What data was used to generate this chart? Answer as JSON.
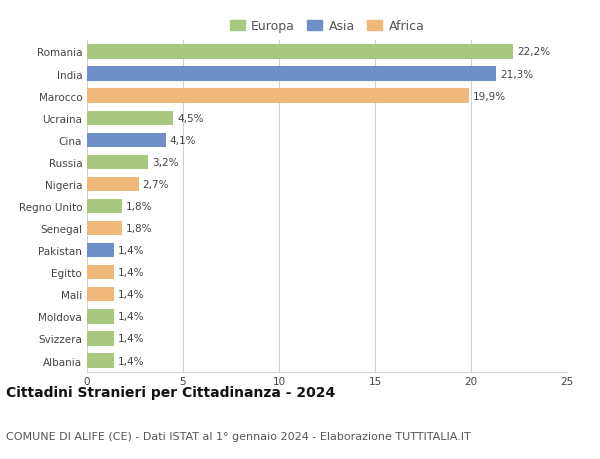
{
  "categories": [
    "Albania",
    "Svizzera",
    "Moldova",
    "Mali",
    "Egitto",
    "Pakistan",
    "Senegal",
    "Regno Unito",
    "Nigeria",
    "Russia",
    "Cina",
    "Ucraina",
    "Marocco",
    "India",
    "Romania"
  ],
  "values": [
    1.4,
    1.4,
    1.4,
    1.4,
    1.4,
    1.4,
    1.8,
    1.8,
    2.7,
    3.2,
    4.1,
    4.5,
    19.9,
    21.3,
    22.2
  ],
  "labels": [
    "1,4%",
    "1,4%",
    "1,4%",
    "1,4%",
    "1,4%",
    "1,4%",
    "1,8%",
    "1,8%",
    "2,7%",
    "3,2%",
    "4,1%",
    "4,5%",
    "19,9%",
    "21,3%",
    "22,2%"
  ],
  "continents": [
    "Europa",
    "Europa",
    "Europa",
    "Africa",
    "Africa",
    "Asia",
    "Africa",
    "Europa",
    "Africa",
    "Europa",
    "Asia",
    "Europa",
    "Africa",
    "Asia",
    "Europa"
  ],
  "colors": {
    "Europa": "#a8c880",
    "Asia": "#6e8fc7",
    "Africa": "#f0b87a"
  },
  "legend_labels": [
    "Europa",
    "Asia",
    "Africa"
  ],
  "legend_colors": [
    "#a8c880",
    "#6e8fc7",
    "#f0b87a"
  ],
  "xlim": [
    0,
    25
  ],
  "xticks": [
    0,
    5,
    10,
    15,
    20,
    25
  ],
  "title": "Cittadini Stranieri per Cittadinanza - 2024",
  "subtitle": "COMUNE DI ALIFE (CE) - Dati ISTAT al 1° gennaio 2024 - Elaborazione TUTTITALIA.IT",
  "background_color": "#ffffff",
  "grid_color": "#d0d0d0",
  "bar_height": 0.65,
  "title_fontsize": 10,
  "subtitle_fontsize": 8,
  "label_fontsize": 7.5,
  "tick_fontsize": 7.5,
  "legend_fontsize": 9
}
